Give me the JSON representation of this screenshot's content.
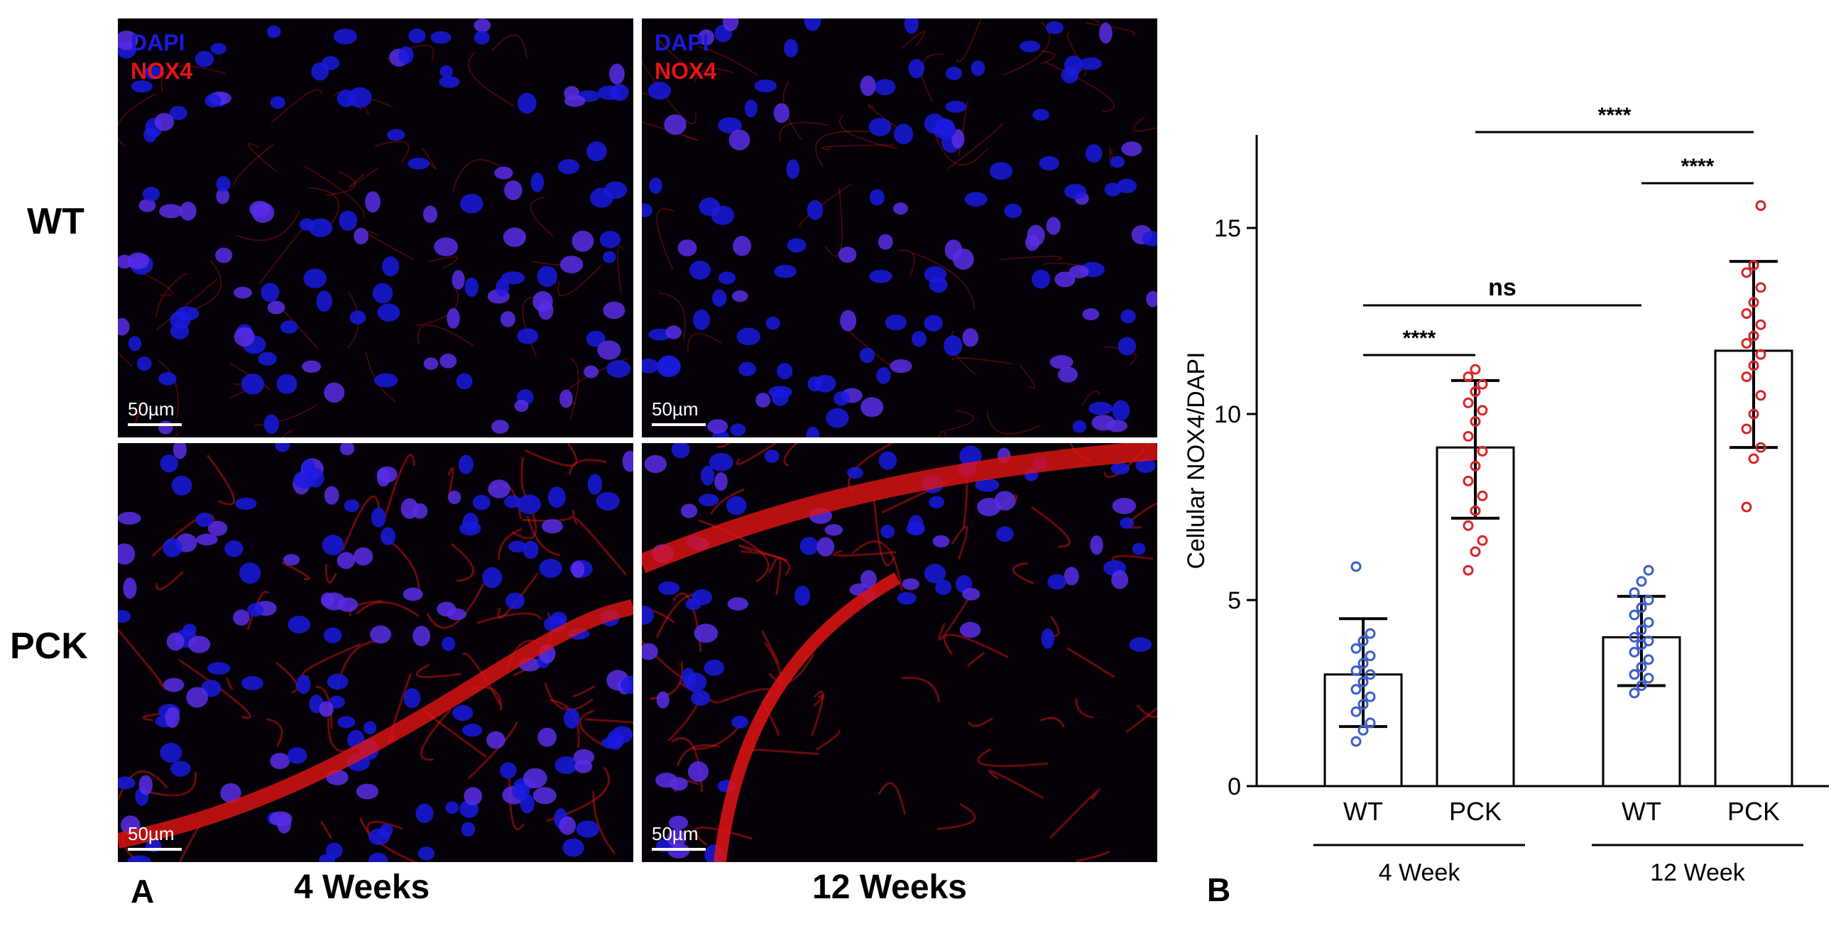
{
  "panel_a": {
    "letter": "A",
    "row_labels": [
      "WT",
      "PCK"
    ],
    "col_labels": [
      "4 Weeks",
      "12 Weeks"
    ],
    "stain_labels": [
      "DAPI",
      "NOX4"
    ],
    "scale_label": "50µm",
    "images": [
      {
        "row": "WT",
        "col": "4 Weeks",
        "show_stain": true
      },
      {
        "row": "WT",
        "col": "12 Weeks",
        "show_stain": true
      },
      {
        "row": "PCK",
        "col": "4 Weeks",
        "show_stain": false
      },
      {
        "row": "PCK",
        "col": "12 Weeks",
        "show_stain": false
      }
    ],
    "colors": {
      "dapi": "#1a1adf",
      "nox4": "#e41414",
      "background": "#050008"
    }
  },
  "panel_b": {
    "letter": "B"
  },
  "chart_data": {
    "type": "bar",
    "ylabel": "Cellular NOX4/DAPI",
    "ylim": [
      0,
      17.5
    ],
    "yticks": [
      0,
      5,
      10,
      15
    ],
    "categories": [
      "WT",
      "PCK",
      "WT",
      "PCK"
    ],
    "groups": [
      {
        "label": "4 Week",
        "categories": [
          0,
          1
        ]
      },
      {
        "label": "12 Week",
        "categories": [
          2,
          3
        ]
      }
    ],
    "bars": [
      {
        "label": "WT",
        "mean": 3.0,
        "err_low": 1.6,
        "err_high": 4.5,
        "point_color": "#3b5fc8",
        "points": [
          1.2,
          1.5,
          1.7,
          2.0,
          2.2,
          2.4,
          2.6,
          2.8,
          3.0,
          3.1,
          3.3,
          3.5,
          3.7,
          3.9,
          4.1,
          5.9
        ]
      },
      {
        "label": "PCK",
        "mean": 9.1,
        "err_low": 7.2,
        "err_high": 10.9,
        "point_color": "#d8262b",
        "points": [
          5.8,
          6.3,
          6.6,
          7.0,
          7.4,
          7.8,
          8.2,
          8.6,
          9.0,
          9.4,
          9.8,
          10.1,
          10.3,
          10.6,
          10.8,
          11.0,
          11.2
        ]
      },
      {
        "label": "WT",
        "mean": 4.0,
        "err_low": 2.7,
        "err_high": 5.1,
        "point_color": "#3b5fc8",
        "points": [
          2.5,
          2.7,
          2.9,
          3.0,
          3.2,
          3.4,
          3.6,
          3.8,
          3.9,
          4.0,
          4.2,
          4.4,
          4.6,
          4.8,
          5.0,
          5.2,
          5.5,
          5.8
        ]
      },
      {
        "label": "PCK",
        "mean": 11.7,
        "err_low": 9.1,
        "err_high": 14.1,
        "point_color": "#d8262b",
        "points": [
          7.5,
          8.8,
          9.1,
          9.6,
          10.0,
          10.5,
          11.0,
          11.3,
          11.6,
          11.9,
          12.1,
          12.4,
          12.7,
          13.0,
          13.4,
          13.8,
          14.0,
          15.6
        ]
      }
    ],
    "comparisons": [
      {
        "from": 0,
        "to": 1,
        "label": "****"
      },
      {
        "from": 0,
        "to": 2,
        "label": "ns"
      },
      {
        "from": 2,
        "to": 3,
        "label": "****"
      },
      {
        "from": 1,
        "to": 3,
        "label": "****"
      }
    ]
  }
}
